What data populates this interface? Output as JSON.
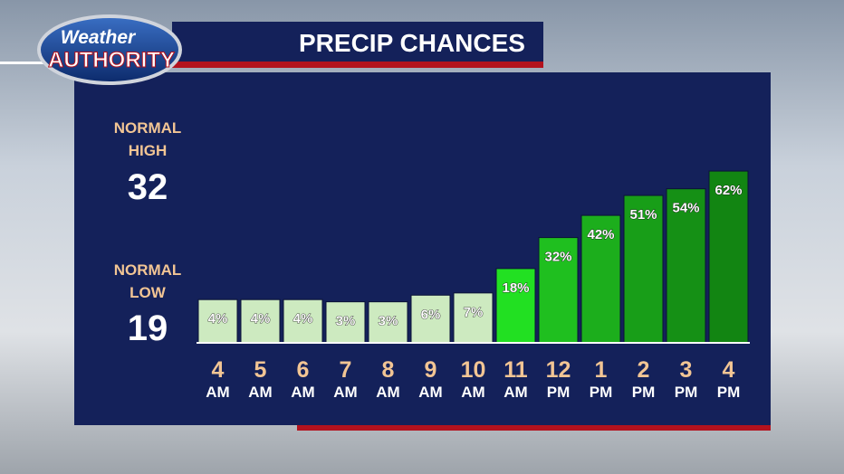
{
  "header": {
    "logo_top": "Weather",
    "logo_bottom": "AUTHORITY",
    "title": "PRECIP CHANCES"
  },
  "normals": {
    "high_label": "NORMAL HIGH",
    "high": 32,
    "low_label": "NORMAL LOW",
    "low": 19
  },
  "chart_data": {
    "type": "bar",
    "categories": [
      "4",
      "5",
      "6",
      "7",
      "8",
      "9",
      "10",
      "11",
      "12",
      "1",
      "2",
      "3",
      "4"
    ],
    "periods": [
      "AM",
      "AM",
      "AM",
      "AM",
      "AM",
      "AM",
      "AM",
      "AM",
      "PM",
      "PM",
      "PM",
      "PM",
      "PM"
    ],
    "values": [
      4,
      4,
      4,
      3,
      3,
      6,
      7,
      18,
      32,
      42,
      51,
      54,
      62
    ],
    "value_labels": [
      "4%",
      "4%",
      "4%",
      "3%",
      "3%",
      "6%",
      "7%",
      "18%",
      "32%",
      "42%",
      "51%",
      "54%",
      "62%"
    ],
    "colors": [
      "#cdeac0",
      "#cdeac0",
      "#cdeac0",
      "#cdeac0",
      "#cdeac0",
      "#cdeac0",
      "#cdeac0",
      "#22e022",
      "#1fbf1f",
      "#1cae1c",
      "#189e18",
      "#159015",
      "#128512"
    ]
  }
}
